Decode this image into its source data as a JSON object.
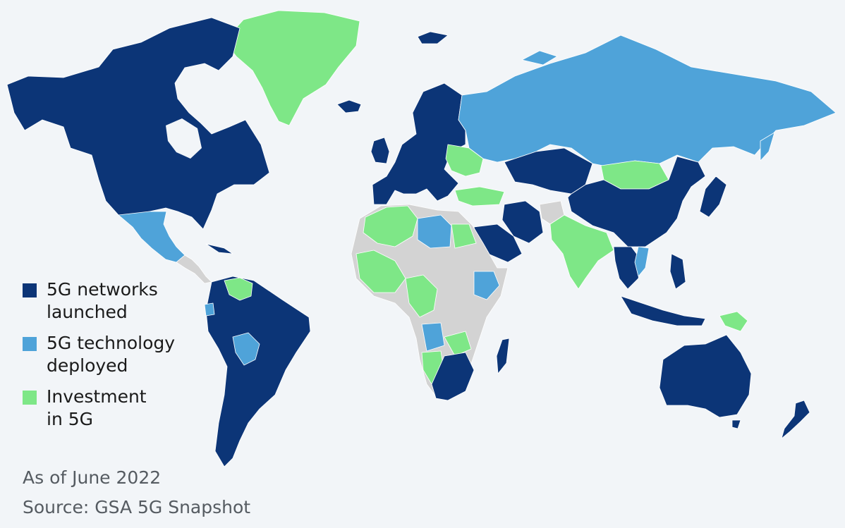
{
  "legend": {
    "items": [
      {
        "label": "5G networks launched",
        "color": "#0c3577"
      },
      {
        "label": "5G technology deployed",
        "color": "#4fa3d9"
      },
      {
        "label": "Investment in 5G",
        "color": "#7ee787"
      }
    ]
  },
  "footnote": {
    "date": "As of June 2022",
    "source": "Source: GSA 5G Snapshot"
  },
  "colors": {
    "background": "#f2f5f8",
    "launched": "#0c3577",
    "deployed": "#4fa3d9",
    "investment": "#7ee787",
    "no_data": "#d3d3d3"
  }
}
